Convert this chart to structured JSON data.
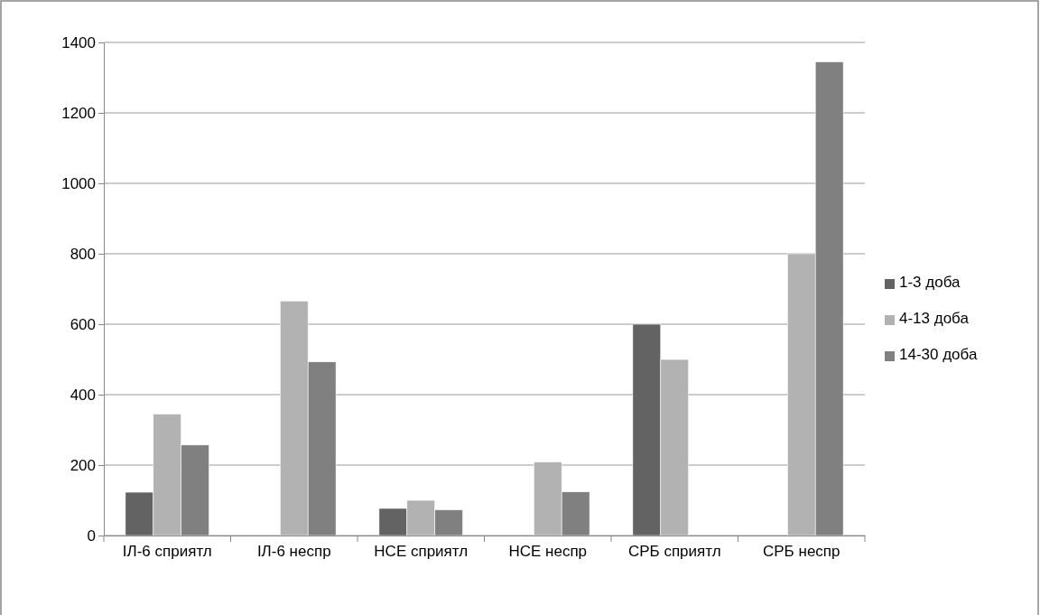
{
  "chart_data": {
    "type": "bar",
    "categories": [
      "ІЛ-6 сприятл",
      "ІЛ-6 неспр",
      "НСЕ сприятл",
      "НСЕ неспр",
      "СРБ сприятл",
      "СРБ неспр"
    ],
    "series": [
      {
        "name": "1-3 доба",
        "color": "#636363",
        "values": [
          123,
          null,
          77,
          null,
          600,
          null
        ]
      },
      {
        "name": "4-13 доба",
        "color": "#b2b2b2",
        "values": [
          345,
          666,
          100,
          209,
          500,
          800
        ]
      },
      {
        "name": "14-30 доба",
        "color": "#808080",
        "values": [
          257,
          493,
          73,
          124,
          null,
          1345
        ]
      }
    ],
    "ylim": [
      0,
      1400
    ],
    "yticks": [
      0,
      200,
      400,
      600,
      800,
      1000,
      1200,
      1400
    ],
    "grid": "y",
    "legend": "right"
  }
}
